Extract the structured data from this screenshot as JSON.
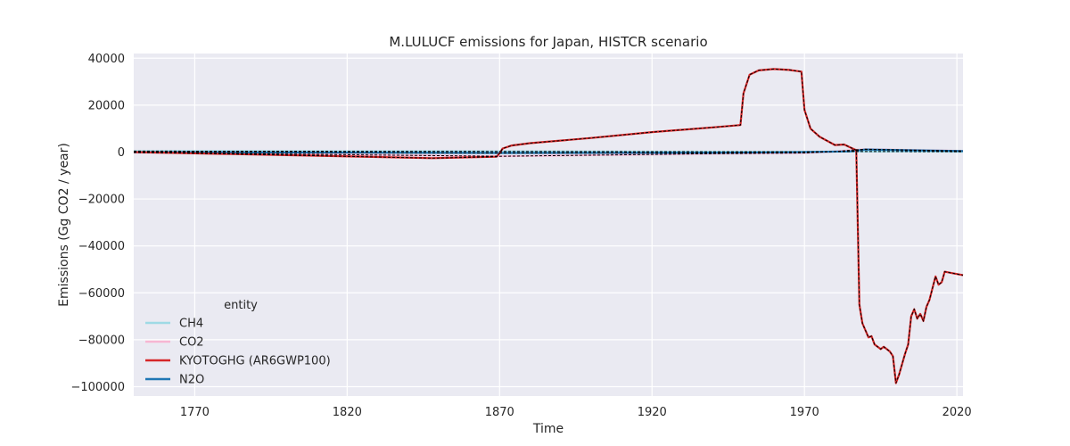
{
  "chart_data": {
    "type": "line",
    "title": "M.LULUCF emissions for Japan, HISTCR scenario",
    "xlabel": "Time",
    "ylabel": "Emissions (Gg CO2 / year)",
    "xlim": [
      1750,
      2022
    ],
    "ylim": [
      -104000,
      42000
    ],
    "xticks": [
      1770,
      1820,
      1870,
      1920,
      1970,
      2020
    ],
    "yticks": [
      40000,
      20000,
      0,
      -20000,
      -40000,
      -60000,
      -80000,
      -100000
    ],
    "ytick_labels": [
      "40000",
      "20000",
      "0",
      "−20000",
      "−40000",
      "−60000",
      "−80000",
      "−100000"
    ],
    "grid": true,
    "legend": {
      "title": "entity",
      "position": "lower-left"
    },
    "series": [
      {
        "name": "CH4",
        "color": "#9edae5",
        "points": [
          [
            1750,
            400
          ],
          [
            1870,
            300
          ],
          [
            1940,
            150
          ],
          [
            1970,
            100
          ],
          [
            1985,
            200
          ],
          [
            2000,
            200
          ],
          [
            2022,
            150
          ]
        ]
      },
      {
        "name": "CO2",
        "color": "#f7b6d2",
        "points": [
          [
            1750,
            -200
          ],
          [
            1870,
            -1800
          ],
          [
            1940,
            -700
          ],
          [
            1970,
            -400
          ],
          [
            1980,
            200
          ],
          [
            1986,
            900
          ],
          [
            1990,
            1200
          ],
          [
            2022,
            500
          ]
        ]
      },
      {
        "name": "KYOTOGHG (AR6GWP100)",
        "color": "#d62728",
        "points": [
          [
            1750,
            0
          ],
          [
            1800,
            -1300
          ],
          [
            1848,
            -2600
          ],
          [
            1869,
            -2000
          ],
          [
            1870,
            -500
          ],
          [
            1871,
            1500
          ],
          [
            1874,
            2800
          ],
          [
            1880,
            3800
          ],
          [
            1900,
            6000
          ],
          [
            1920,
            8500
          ],
          [
            1940,
            10500
          ],
          [
            1949,
            11500
          ],
          [
            1950,
            25000
          ],
          [
            1952,
            33000
          ],
          [
            1955,
            34800
          ],
          [
            1960,
            35400
          ],
          [
            1965,
            35000
          ],
          [
            1969,
            34300
          ],
          [
            1970,
            18000
          ],
          [
            1972,
            10000
          ],
          [
            1975,
            6500
          ],
          [
            1980,
            3000
          ],
          [
            1983,
            3200
          ],
          [
            1985,
            2000
          ],
          [
            1987,
            800
          ],
          [
            1988,
            -65000
          ],
          [
            1989,
            -73000
          ],
          [
            1991,
            -79000
          ],
          [
            1992,
            -78500
          ],
          [
            1993,
            -82000
          ],
          [
            1995,
            -84000
          ],
          [
            1996,
            -83000
          ],
          [
            1998,
            -85000
          ],
          [
            1999,
            -87000
          ],
          [
            2000,
            -98500
          ],
          [
            2001,
            -95000
          ],
          [
            2003,
            -86000
          ],
          [
            2004,
            -82000
          ],
          [
            2005,
            -70000
          ],
          [
            2006,
            -67000
          ],
          [
            2007,
            -71000
          ],
          [
            2008,
            -69000
          ],
          [
            2009,
            -72000
          ],
          [
            2010,
            -66000
          ],
          [
            2011,
            -63000
          ],
          [
            2012,
            -58000
          ],
          [
            2013,
            -53000
          ],
          [
            2014,
            -56500
          ],
          [
            2015,
            -55500
          ],
          [
            2016,
            -51000
          ],
          [
            2018,
            -51500
          ],
          [
            2020,
            -52000
          ],
          [
            2022,
            -52500
          ]
        ]
      },
      {
        "name": "N2O",
        "color": "#1f77b4",
        "points": [
          [
            1750,
            0
          ],
          [
            1870,
            -400
          ],
          [
            1940,
            -300
          ],
          [
            1970,
            0
          ],
          [
            1985,
            300
          ],
          [
            1990,
            1100
          ],
          [
            2022,
            400
          ]
        ]
      }
    ]
  }
}
